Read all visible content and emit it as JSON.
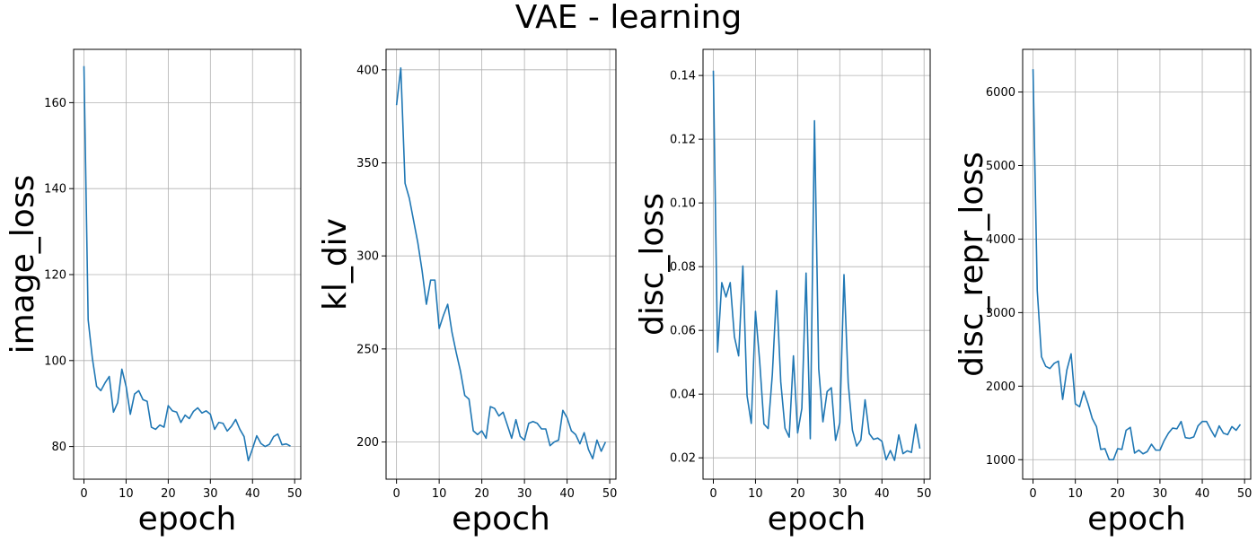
{
  "figure": {
    "title": "VAE - learning"
  },
  "chart_data": [
    {
      "type": "line",
      "title": "",
      "xlabel": "epoch",
      "ylabel": "image_loss",
      "xlim": [
        -2.45,
        51.45
      ],
      "ylim": [
        72.4,
        172.4
      ],
      "xticks": [
        0,
        10,
        20,
        30,
        40,
        50
      ],
      "yticks": [
        80,
        100,
        120,
        140,
        160
      ],
      "grid": true,
      "color": "#1f77b4",
      "series": [
        {
          "x": [
            0,
            1,
            2,
            3,
            4,
            5,
            6,
            7,
            8,
            9,
            10,
            11,
            12,
            13,
            14,
            15,
            16,
            17,
            18,
            19,
            20,
            21,
            22,
            23,
            24,
            25,
            26,
            27,
            28,
            29,
            30,
            31,
            32,
            33,
            34,
            35,
            36,
            37,
            38,
            39,
            40,
            41,
            42,
            43,
            44,
            45,
            46,
            47,
            48,
            49
          ],
          "values": [
            168.5,
            109.5,
            100.5,
            94,
            93,
            94.8,
            96.3,
            88,
            90.2,
            98,
            94,
            87.5,
            92.2,
            93,
            90.9,
            90.5,
            84.5,
            84,
            85,
            84.5,
            89.5,
            88.3,
            88,
            85.6,
            87.3,
            86.5,
            88.2,
            89,
            87.8,
            88.3,
            87.5,
            84,
            85.6,
            85.4,
            83.6,
            84.7,
            86.3,
            84,
            82.3,
            76.7,
            79.5,
            82.5,
            80.7,
            80,
            80.5,
            82.3,
            82.9,
            80.4,
            80.6,
            80.1
          ]
        }
      ]
    },
    {
      "type": "line",
      "title": "",
      "xlabel": "epoch",
      "ylabel": "kl_div",
      "xlim": [
        -2.45,
        51.45
      ],
      "ylim": [
        180,
        411
      ],
      "xticks": [
        0,
        10,
        20,
        30,
        40,
        50
      ],
      "yticks": [
        200,
        250,
        300,
        350,
        400
      ],
      "grid": true,
      "color": "#1f77b4",
      "series": [
        {
          "x": [
            0,
            1,
            2,
            3,
            4,
            5,
            6,
            7,
            8,
            9,
            10,
            11,
            12,
            13,
            14,
            15,
            16,
            17,
            18,
            19,
            20,
            21,
            22,
            23,
            24,
            25,
            26,
            27,
            28,
            29,
            30,
            31,
            32,
            33,
            34,
            35,
            36,
            37,
            38,
            39,
            40,
            41,
            42,
            43,
            44,
            45,
            46,
            47,
            48,
            49
          ],
          "values": [
            381,
            401,
            339,
            331,
            319,
            307,
            292,
            274,
            287,
            287,
            261,
            268,
            274,
            259,
            248,
            238,
            225,
            223,
            206,
            204,
            206,
            202,
            219,
            218,
            214,
            216,
            209,
            202,
            212,
            203,
            201,
            210,
            211,
            210,
            207,
            207,
            198,
            200,
            201,
            217,
            213,
            206,
            204,
            199,
            205,
            196,
            191,
            201,
            195,
            200
          ]
        }
      ]
    },
    {
      "type": "line",
      "title": "",
      "xlabel": "epoch",
      "ylabel": "disc_loss",
      "xlim": [
        -2.45,
        51.45
      ],
      "ylim": [
        0.0133,
        0.1482
      ],
      "xticks": [
        0,
        10,
        20,
        30,
        40,
        50
      ],
      "yticks": [
        0.02,
        0.04,
        0.06,
        0.08,
        0.1,
        0.12,
        0.14
      ],
      "ytick_labels": [
        "0.02",
        "0.04",
        "0.06",
        "0.08",
        "0.10",
        "0.12",
        "0.14"
      ],
      "grid": true,
      "color": "#1f77b4",
      "series": [
        {
          "x": [
            0,
            1,
            2,
            3,
            4,
            5,
            6,
            7,
            8,
            9,
            10,
            11,
            12,
            13,
            14,
            15,
            16,
            17,
            18,
            19,
            20,
            21,
            22,
            23,
            24,
            25,
            26,
            27,
            28,
            29,
            30,
            31,
            32,
            33,
            34,
            35,
            36,
            37,
            38,
            39,
            40,
            41,
            42,
            43,
            44,
            45,
            46,
            47,
            48,
            49
          ],
          "values": [
            0.1415,
            0.0532,
            0.075,
            0.0705,
            0.075,
            0.058,
            0.052,
            0.0802,
            0.0395,
            0.0308,
            0.066,
            0.0502,
            0.0306,
            0.0292,
            0.0462,
            0.0725,
            0.0438,
            0.0293,
            0.0265,
            0.052,
            0.0278,
            0.0355,
            0.078,
            0.026,
            0.1258,
            0.048,
            0.0313,
            0.0408,
            0.042,
            0.0255,
            0.031,
            0.0775,
            0.0435,
            0.0287,
            0.0237,
            0.0256,
            0.0382,
            0.0276,
            0.0258,
            0.0262,
            0.0252,
            0.0194,
            0.0223,
            0.0192,
            0.0272,
            0.0213,
            0.0222,
            0.0217,
            0.0305,
            0.0229
          ]
        }
      ]
    },
    {
      "type": "line",
      "title": "",
      "xlabel": "epoch",
      "ylabel": "disc_repr_loss",
      "xlim": [
        -2.45,
        51.45
      ],
      "ylim": [
        735,
        6580
      ],
      "xticks": [
        0,
        10,
        20,
        30,
        40,
        50
      ],
      "yticks": [
        1000,
        2000,
        3000,
        4000,
        5000,
        6000
      ],
      "grid": true,
      "color": "#1f77b4",
      "series": [
        {
          "x": [
            0,
            1,
            2,
            3,
            4,
            5,
            6,
            7,
            8,
            9,
            10,
            11,
            12,
            13,
            14,
            15,
            16,
            17,
            18,
            19,
            20,
            21,
            22,
            23,
            24,
            25,
            26,
            27,
            28,
            29,
            30,
            31,
            32,
            33,
            34,
            35,
            36,
            37,
            38,
            39,
            40,
            41,
            42,
            43,
            44,
            45,
            46,
            47,
            48,
            49
          ],
          "values": [
            6310,
            3300,
            2400,
            2270,
            2240,
            2310,
            2340,
            1820,
            2220,
            2440,
            1760,
            1720,
            1930,
            1760,
            1560,
            1450,
            1140,
            1150,
            1000,
            1000,
            1150,
            1140,
            1400,
            1440,
            1090,
            1130,
            1080,
            1110,
            1210,
            1130,
            1130,
            1260,
            1360,
            1430,
            1420,
            1520,
            1300,
            1290,
            1310,
            1460,
            1520,
            1520,
            1410,
            1310,
            1460,
            1360,
            1340,
            1450,
            1400,
            1480
          ]
        }
      ]
    }
  ]
}
